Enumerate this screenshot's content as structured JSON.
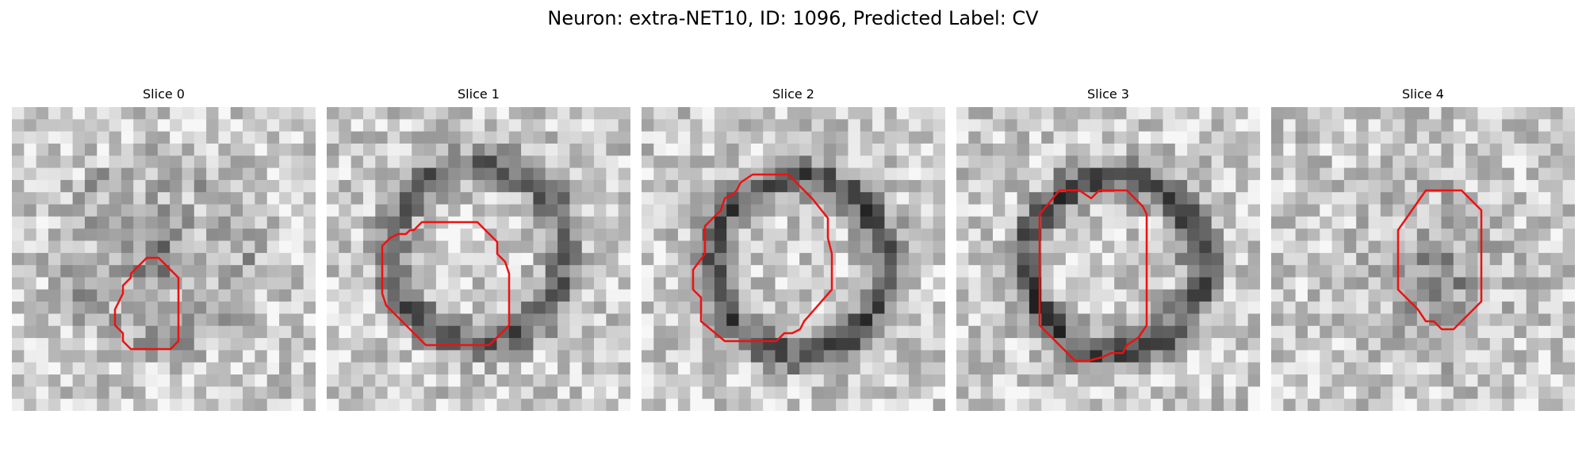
{
  "title": "Neuron: extra-NET10, ID: 1096, Predicted Label: CV",
  "contour_color": "#ee1111",
  "slices": [
    {
      "label": "Slice 0",
      "ring": 0.25,
      "blob": 0.55,
      "cx": 11.5,
      "cy": 11.5,
      "seed": 11
    },
    {
      "label": "Slice 1",
      "ring": 0.75,
      "blob": 0.0,
      "cx": 12.0,
      "cy": 11.5,
      "seed": 23
    },
    {
      "label": "Slice 2",
      "ring": 0.85,
      "blob": 0.0,
      "cx": 12.5,
      "cy": 12.5,
      "seed": 37
    },
    {
      "label": "Slice 3",
      "ring": 0.9,
      "blob": 0.0,
      "cx": 12.5,
      "cy": 12.5,
      "seed": 41
    },
    {
      "label": "Slice 4",
      "ring": 0.1,
      "blob": 0.55,
      "cx": 13.0,
      "cy": 13.5,
      "seed": 53
    }
  ]
}
